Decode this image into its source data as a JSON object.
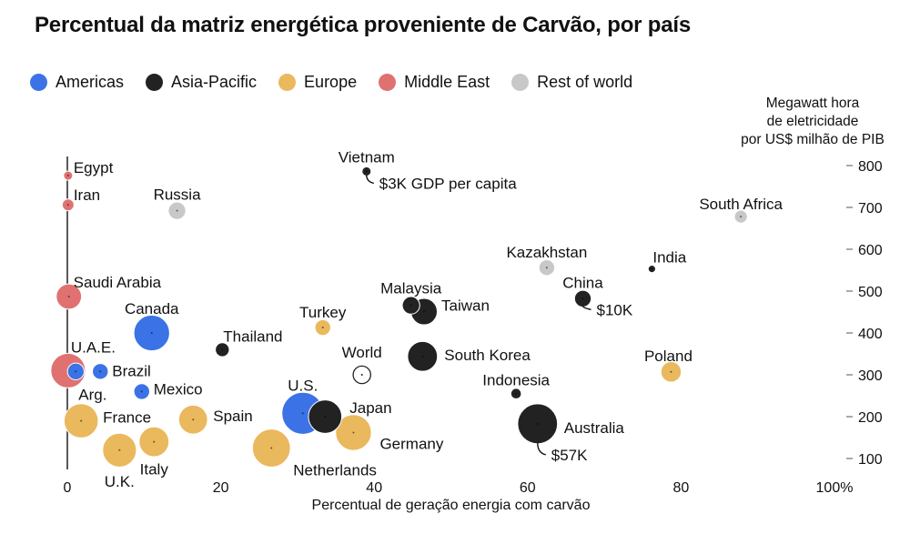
{
  "title": "Percentual da matriz energética proveniente de Carvão, por país",
  "legend": [
    {
      "label": "Americas",
      "color": "#3b73e6"
    },
    {
      "label": "Asia-Pacific",
      "color": "#222222"
    },
    {
      "label": "Europe",
      "color": "#eab85d"
    },
    {
      "label": "Middle East",
      "color": "#e07171"
    },
    {
      "label": "Rest of world",
      "color": "#c8c8c8"
    }
  ],
  "chart_data": {
    "type": "scatter",
    "title": "Percentual da matriz energética proveniente de Carvão, por país",
    "xlabel": "Percentual de geração energia com carvão",
    "ylabel_lines": [
      "Megawatt hora",
      "de eletricidade",
      "por US$ milhão de PIB"
    ],
    "x_ticks": [
      "0",
      "20",
      "40",
      "60",
      "80",
      "100%"
    ],
    "y_ticks": [
      "100",
      "200",
      "300",
      "400",
      "500",
      "600",
      "700",
      "800"
    ],
    "xlim": [
      0,
      100
    ],
    "ylim": [
      60,
      830
    ],
    "size_note": "bubble size = GDP per capita",
    "size_labels": [
      {
        "country": "Vietnam",
        "text": "$3K GDP per capita"
      },
      {
        "country": "China",
        "text": "$10K"
      },
      {
        "country": "Australia",
        "text": "$57K"
      }
    ],
    "points": [
      {
        "country": "Egypt",
        "region": "Middle East",
        "x": 0.1,
        "y": 776,
        "gdp": 3
      },
      {
        "country": "Iran",
        "region": "Middle East",
        "x": 0.1,
        "y": 706,
        "gdp": 5
      },
      {
        "country": "Russia",
        "region": "Rest of world",
        "x": 14.3,
        "y": 692,
        "gdp": 11
      },
      {
        "country": "Vietnam",
        "region": "Asia-Pacific",
        "x": 39,
        "y": 786,
        "gdp": 3
      },
      {
        "country": "South Africa",
        "region": "Rest of world",
        "x": 87.8,
        "y": 678,
        "gdp": 6
      },
      {
        "country": "Kazakhstan",
        "region": "Rest of world",
        "x": 62.5,
        "y": 556,
        "gdp": 9
      },
      {
        "country": "India",
        "region": "Asia-Pacific",
        "x": 76.2,
        "y": 553,
        "gdp": 2
      },
      {
        "country": "China",
        "region": "Asia-Pacific",
        "x": 67.2,
        "y": 482,
        "gdp": 10
      },
      {
        "country": "Saudi Arabia",
        "region": "Middle East",
        "x": 0.2,
        "y": 487,
        "gdp": 23
      },
      {
        "country": "Malaysia",
        "region": "Asia-Pacific",
        "x": 44.8,
        "y": 466,
        "gdp": 11
      },
      {
        "country": "Taiwan",
        "region": "Asia-Pacific",
        "x": 46.5,
        "y": 451,
        "gdp": 25
      },
      {
        "country": "Turkey",
        "region": "Europe",
        "x": 33.3,
        "y": 413,
        "gdp": 9
      },
      {
        "country": "Canada",
        "region": "Americas",
        "x": 11,
        "y": 400,
        "gdp": 46
      },
      {
        "country": "Thailand",
        "region": "Asia-Pacific",
        "x": 20.2,
        "y": 360,
        "gdp": 7
      },
      {
        "country": "South Korea",
        "region": "Asia-Pacific",
        "x": 46.3,
        "y": 344,
        "gdp": 32
      },
      {
        "country": "World",
        "region": "World",
        "x": 38.4,
        "y": 300,
        "gdp": 11
      },
      {
        "country": "Poland",
        "region": "Europe",
        "x": 78.7,
        "y": 307,
        "gdp": 15
      },
      {
        "country": "U.A.E.",
        "region": "Middle East",
        "x": 0.1,
        "y": 310,
        "gdp": 43
      },
      {
        "country": "Arg.",
        "region": "Americas",
        "x": 1.1,
        "y": 308,
        "gdp": 10
      },
      {
        "country": "Brazil",
        "region": "Americas",
        "x": 4.3,
        "y": 308,
        "gdp": 9
      },
      {
        "country": "Indonesia",
        "region": "Asia-Pacific",
        "x": 58.5,
        "y": 255,
        "gdp": 4
      },
      {
        "country": "Mexico",
        "region": "Americas",
        "x": 9.7,
        "y": 260,
        "gdp": 9
      },
      {
        "country": "U.S.",
        "region": "Americas",
        "x": 30.7,
        "y": 208,
        "gdp": 63
      },
      {
        "country": "Japan",
        "region": "Asia-Pacific",
        "x": 33.6,
        "y": 200,
        "gdp": 40
      },
      {
        "country": "France",
        "region": "Europe",
        "x": 1.8,
        "y": 190,
        "gdp": 42
      },
      {
        "country": "Spain",
        "region": "Europe",
        "x": 16.4,
        "y": 193,
        "gdp": 30
      },
      {
        "country": "Germany",
        "region": "Europe",
        "x": 37.3,
        "y": 162,
        "gdp": 46
      },
      {
        "country": "Australia",
        "region": "Asia-Pacific",
        "x": 61.3,
        "y": 183,
        "gdp": 57
      },
      {
        "country": "Italy",
        "region": "Europe",
        "x": 11.3,
        "y": 140,
        "gdp": 32
      },
      {
        "country": "U.K.",
        "region": "Europe",
        "x": 6.8,
        "y": 120,
        "gdp": 41
      },
      {
        "country": "Netherlands",
        "region": "Europe",
        "x": 26.6,
        "y": 125,
        "gdp": 52
      }
    ]
  }
}
